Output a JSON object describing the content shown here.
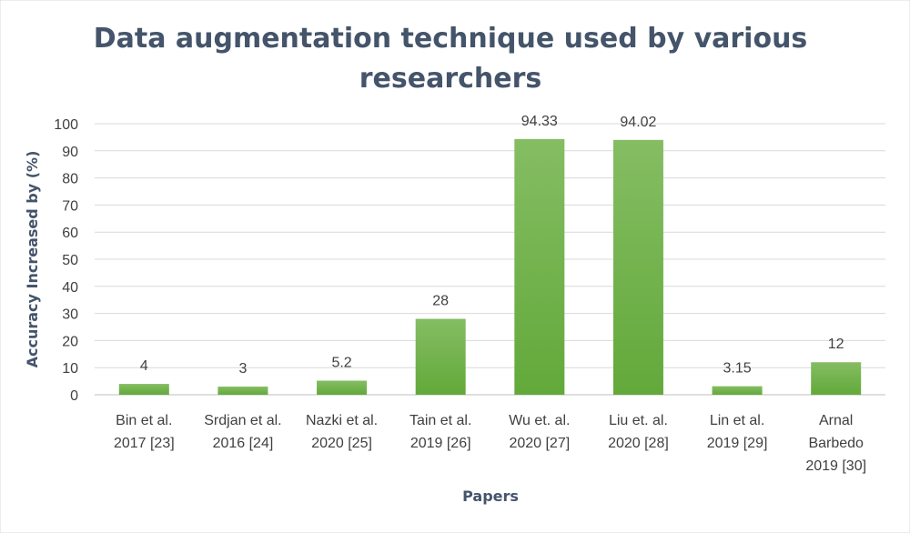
{
  "chart_data": {
    "type": "bar",
    "title_lines": [
      "Data augmentation technique used by various",
      "researchers"
    ],
    "xlabel": "Papers",
    "ylabel": "Accuracy Increased by (%)",
    "ylim": [
      0,
      100
    ],
    "yticks": [
      0,
      10,
      20,
      30,
      40,
      50,
      60,
      70,
      80,
      90,
      100
    ],
    "grid": true,
    "legend": "none",
    "bar_color": "#70ad47",
    "categories": [
      [
        "Bin et al.",
        "2017 [23]"
      ],
      [
        "Srdjan et al.",
        "2016 [24]"
      ],
      [
        "Nazki et al.",
        "2020 [25]"
      ],
      [
        "Tain et al.",
        "2019 [26]"
      ],
      [
        "Wu et. al.",
        "2020 [27]"
      ],
      [
        "Liu et. al.",
        "2020 [28]"
      ],
      [
        "Lin et al.",
        "2019 [29]"
      ],
      [
        "Arnal",
        "Barbedo",
        "2019 [30]"
      ]
    ],
    "values": [
      4,
      3,
      5.2,
      28,
      94.33,
      94.02,
      3.15,
      12
    ],
    "data_labels": [
      "4",
      "3",
      "5.2",
      "28",
      "94.33",
      "94.02",
      "3.15",
      "12"
    ]
  }
}
